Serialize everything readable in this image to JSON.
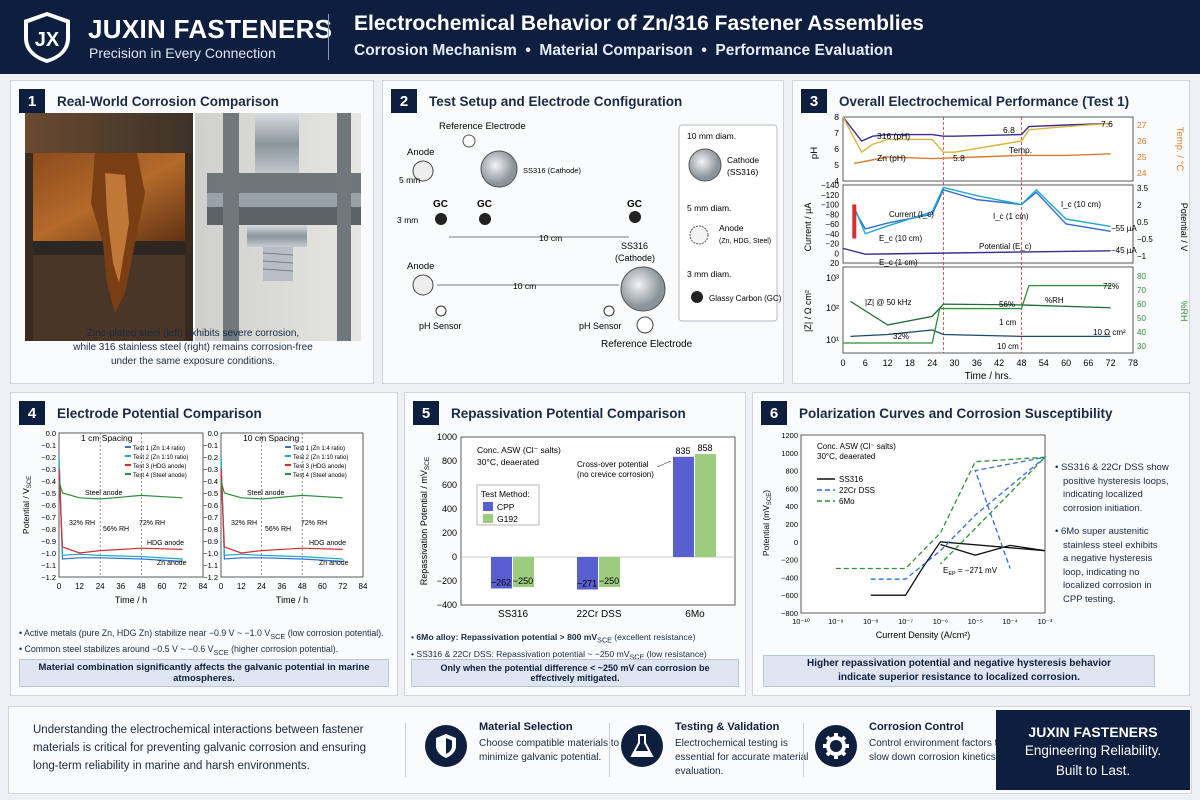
{
  "header": {
    "brand": "JUXIN FASTENERS",
    "tagline": "Precision in Every Connection",
    "title": "Electrochemical Behavior of Zn/316 Fastener Assemblies",
    "subtitle": "Corrosion Mechanism  •  Material Comparison  •  Performance Evaluation",
    "logo_text": "JX"
  },
  "p1": {
    "num": "1",
    "title": "Real-World Corrosion Comparison",
    "caption": [
      "Zinc-plated steel (left) exhibits severe corrosion,",
      "while 316 stainless steel (right) remains corrosion-free",
      "under the same exposure conditions."
    ]
  },
  "p2": {
    "num": "2",
    "title": "Test Setup and Electrode Configuration",
    "labels": {
      "ref1": "Reference Electrode",
      "anode1": "Anode",
      "mm5": "5 mm",
      "ss_cath": "SS316 (Cathode)",
      "gc": "GC",
      "mm3": "3 mm",
      "cm10": "10 cm",
      "ss316": "SS316",
      "cathode": "(Cathode)",
      "anode2": "Anode",
      "cm10b": "10 cm",
      "ph1": "pH Sensor",
      "ph2": "pH Sensor",
      "ref2": "Reference Electrode"
    },
    "legend": {
      "l1": "10 mm diam.",
      "l2a": "Cathode",
      "l2b": "(SS316)",
      "l3": "5 mm diam.",
      "l4a": "Anode",
      "l4b": "(Zn, HDG, Steel)",
      "l5": "3 mm diam.",
      "l6": "Glassy Carbon (GC)"
    }
  },
  "p3": {
    "num": "3",
    "title": "Overall Electrochemical Performance (Test 1)",
    "chart_data": {
      "type": "line",
      "xlabel": "Time / hrs.",
      "x_ticks": [
        0,
        6,
        12,
        18,
        24,
        30,
        36,
        42,
        48,
        54,
        60,
        66,
        72,
        78
      ],
      "top": {
        "ylabel": "pH",
        "yticks": [
          4,
          5,
          6,
          7,
          8
        ],
        "y2label": "Temp. / °C",
        "y2ticks": [
          24,
          25,
          26,
          27
        ],
        "labels": [
          "316 (pH)",
          "Zn (pH)",
          "Temp.",
          "5.8",
          "6.8",
          "7.6"
        ],
        "series": [
          {
            "name": "316 (pH)",
            "x": [
              0,
              5,
              8,
              12,
              24,
              27,
              30,
              48,
              50,
              60,
              72
            ],
            "y": [
              8,
              6.5,
              6.8,
              6.9,
              6.9,
              6.8,
              6.8,
              6.9,
              7.4,
              7.5,
              7.6
            ]
          },
          {
            "name": "Zn (pH)",
            "x": [
              0,
              5,
              8,
              12,
              24,
              27,
              30,
              48,
              50,
              60,
              72
            ],
            "y": [
              8,
              5.8,
              6.3,
              6.6,
              6.6,
              5.8,
              5.8,
              6.5,
              7.2,
              7.4,
              7.6
            ]
          },
          {
            "name": "Temp.",
            "x": [
              3,
              12,
              24,
              36,
              48,
              60,
              72
            ],
            "y": [
              24.6,
              25,
              24.9,
              25,
              25.1,
              25.1,
              25.2
            ]
          }
        ]
      },
      "mid": {
        "ylabel": "Current / µA",
        "yticks": [
          -140,
          -120,
          -100,
          -80,
          -60,
          -40,
          -20,
          0,
          20
        ],
        "y2label": "Potential / V",
        "y2ticks": [
          3.5,
          2.0,
          0.5,
          -0.5,
          -1.0
        ],
        "labels": [
          "Current (I_c)",
          "I_c (1 cm)",
          "I_c (10 cm)",
          "E_c (10 cm)",
          "Potential (E_c)",
          "E_c (1 cm)",
          "−55 µA",
          "−45 µA"
        ],
        "series": [
          {
            "name": "I_c (1 cm)",
            "x": [
              3,
              6,
              12,
              24,
              27,
              36,
              48,
              52,
              60,
              72
            ],
            "y": [
              -90,
              -50,
              -62,
              -80,
              -130,
              -110,
              -100,
              -125,
              -60,
              -45
            ]
          },
          {
            "name": "I_c (10 cm)",
            "x": [
              3,
              6,
              12,
              24,
              27,
              36,
              48,
              52,
              60,
              72
            ],
            "y": [
              -95,
              -40,
              -56,
              -85,
              -135,
              -118,
              -100,
              -130,
              -70,
              -55
            ]
          },
          {
            "name": "E_c",
            "x": [
              0,
              6,
              24,
              72
            ],
            "y": [
              -10,
              2,
              0,
              -5
            ]
          }
        ]
      },
      "bot": {
        "ylabel": "|Z| / Ω cm²",
        "yticks": [
          "10³",
          "10²",
          "10¹"
        ],
        "y2label": "%RH",
        "y2ticks": [
          80,
          70,
          60,
          50,
          40,
          30
        ],
        "labels": [
          "|Z| @ 50 kHz",
          "32%",
          "56%",
          "72%",
          "%RH",
          "1 cm",
          "10 cm",
          "10 Ω cm²"
        ],
        "series": [
          {
            "name": "|Z| 1 cm",
            "x": [
              2,
              12,
              24,
              27,
              48,
              72
            ],
            "y": [
              200,
              30,
              60,
              160,
              150,
              120
            ]
          },
          {
            "name": "|Z| 10 cm",
            "x": [
              2,
              12,
              24,
              27,
              48,
              72
            ],
            "y": [
              12,
              14,
              20,
              14,
              12,
              12
            ]
          },
          {
            "name": "%RH",
            "x": [
              0,
              24,
              26,
              48,
              50,
              72
            ],
            "y": [
              32,
              32,
              56,
              56,
              72,
              72
            ]
          }
        ]
      }
    }
  },
  "p4": {
    "num": "4",
    "title": "Electrode Potential Comparison",
    "chart_data": [
      {
        "type": "line",
        "title": "1 cm Spacing",
        "xlabel": "Time / h",
        "ylabel": "Potential / V",
        "ylabel_sub": "SCE",
        "xlim": [
          0,
          84
        ],
        "ylim": [
          -1.2,
          0
        ],
        "labels": [
          "Steel anode",
          "32% RH",
          "56% RH",
          "72% RH",
          "HDG anode",
          "Zn anode"
        ],
        "series": [
          {
            "name": "Test 1 (Zn 1:4 ratio)",
            "x": [
              0,
              2,
              12,
              24,
              48,
              72
            ],
            "y": [
              -0.2,
              -1.05,
              -1.04,
              -1.04,
              -1.05,
              -1.07
            ]
          },
          {
            "name": "Test 2 (Zn 1:10 ratio)",
            "x": [
              0,
              2,
              12,
              24,
              48,
              72
            ],
            "y": [
              -0.2,
              -1.02,
              -1.01,
              -1.02,
              -1.03,
              -1.05
            ]
          },
          {
            "name": "Test 3 (HDG anode)",
            "x": [
              0,
              2,
              12,
              24,
              48,
              72
            ],
            "y": [
              -0.3,
              -0.95,
              -1.0,
              -0.98,
              -0.96,
              -0.97
            ]
          },
          {
            "name": "Test 4 (Steel anode)",
            "x": [
              0,
              2,
              12,
              24,
              48,
              72
            ],
            "y": [
              -0.4,
              -0.5,
              -0.54,
              -0.55,
              -0.52,
              -0.54
            ]
          }
        ]
      },
      {
        "type": "line",
        "title": "10 cm Spacing",
        "xlabel": "Time / h",
        "xlim": [
          0,
          84
        ],
        "ylim": [
          -1.2,
          0
        ],
        "labels": [
          "Steel anode",
          "32% RH",
          "56% RH",
          "72% RH",
          "HDG anode",
          "Zn anode"
        ],
        "series": [
          {
            "name": "Test 1 (Zn 1:4 ratio)",
            "x": [
              0,
              2,
              12,
              24,
              48,
              72
            ],
            "y": [
              -0.2,
              -1.05,
              -1.04,
              -1.04,
              -1.05,
              -1.07
            ]
          },
          {
            "name": "Test 2 (Zn 1:10 ratio)",
            "x": [
              0,
              2,
              12,
              24,
              48,
              72
            ],
            "y": [
              -0.2,
              -1.02,
              -1.01,
              -1.02,
              -1.03,
              -1.05
            ]
          },
          {
            "name": "Test 3 (HDG anode)",
            "x": [
              0,
              2,
              12,
              24,
              48,
              72
            ],
            "y": [
              -0.3,
              -0.95,
              -1.0,
              -0.98,
              -0.96,
              -0.97
            ]
          },
          {
            "name": "Test 4 (Steel anode)",
            "x": [
              0,
              2,
              12,
              24,
              48,
              72
            ],
            "y": [
              -0.4,
              -0.5,
              -0.54,
              -0.55,
              -0.52,
              -0.54
            ]
          }
        ]
      }
    ],
    "x_ticks": [
      0,
      12,
      24,
      36,
      48,
      60,
      72,
      84
    ],
    "y_ticks": [
      "0.0",
      "−0.1",
      "−0.2",
      "−0.3",
      "−0.4",
      "−0.5",
      "−0.6",
      "−0.7",
      "−0.8",
      "−0.9",
      "−1.0",
      "−1.1",
      "−1.2"
    ],
    "bullets": [
      "Active metals (pure Zn, HDG Zn) stabilize near −0.9 V ~ −1.0 V",
      "(low corrosion potential).",
      "Common steel stabilizes around −0.5 V ~ −0.6 V",
      "(higher corrosion potential)."
    ],
    "sub": "SCE",
    "box": "Material combination significantly affects the galvanic potential in marine atmospheres."
  },
  "p5": {
    "num": "5",
    "title": "Repassivation Potential Comparison",
    "chart_data": {
      "type": "bar",
      "categories": [
        "SS316",
        "22Cr DSS",
        "6Mo"
      ],
      "series": [
        {
          "name": "CPP",
          "values": [
            -262,
            -271,
            835
          ]
        },
        {
          "name": "G192",
          "values": [
            -250,
            -250,
            858
          ]
        }
      ],
      "ylabel": "Repassivation Potential / mV",
      "ylabel_sub": "SCE",
      "ylim": [
        -400,
        1000
      ],
      "y_ticks": [
        "1000",
        "800",
        "600",
        "400",
        "200",
        "0",
        "−200",
        "−400"
      ],
      "value_labels": [
        "−262",
        "−250",
        "−271",
        "−250",
        "835",
        "858"
      ],
      "legend_title": "Test Method:",
      "annotation": [
        "Conc. ASW (Cl⁻ salts)",
        "30°C, deaerated"
      ],
      "callout": [
        "Cross-over potential",
        "(no crevice corrosion)"
      ]
    },
    "bullets": [
      "6Mo alloy: Repassivation potential > 800 mV",
      "(excellent resistance)",
      "SS316 & 22Cr DSS: Repassivation potential ~ −250 mV",
      "(low resistance)"
    ],
    "sub": "SCE",
    "box": "Only when the potential difference < ~250 mV can corrosion be effectively mitigated."
  },
  "p6": {
    "num": "6",
    "title": "Polarization Curves and Corrosion Susceptibility",
    "chart_data": {
      "type": "line",
      "xlabel": "Current Density (A/cm²)",
      "ylabel": "Potential (mV",
      "ylabel_sub": "SCE",
      "ylabel_end": ")",
      "xlim_exp": [
        -10,
        -3
      ],
      "x_ticks": [
        "10⁻¹⁰",
        "10⁻⁹",
        "10⁻⁸",
        "10⁻⁷",
        "10⁻⁶",
        "10⁻⁵",
        "10⁻⁴",
        "10⁻³"
      ],
      "ylim": [
        -800,
        1200
      ],
      "y_ticks": [
        "1200",
        "1000",
        "800",
        "600",
        "400",
        "200",
        "0",
        "−200",
        "−400",
        "−600",
        "−800"
      ],
      "annotation": [
        "Conc. ASW (Cl⁻ salts)",
        "30°C, deaerated"
      ],
      "ep_label": "E",
      "ep_sub": "EP",
      "ep_value": " = −271 mV",
      "series": [
        {
          "name": "SS316",
          "x": [
            1e-08,
            1e-07,
            3e-07,
            1e-06,
            0.001,
            0.0001,
            1e-05,
            1e-06
          ],
          "y": [
            -600,
            -600,
            -300,
            0,
            -100,
            -40,
            -150,
            -30
          ]
        },
        {
          "name": "22Cr DSS",
          "x": [
            1e-08,
            1e-07,
            1e-06,
            1e-05,
            0.001,
            1e-05,
            0.0001
          ],
          "y": [
            -420,
            -420,
            -100,
            300,
            950,
            800,
            -300
          ]
        },
        {
          "name": "6Mo",
          "x": [
            1e-09,
            1e-07,
            1e-06,
            1e-05,
            0.001,
            1e-06
          ],
          "y": [
            -300,
            -300,
            100,
            900,
            950,
            -250
          ]
        }
      ]
    },
    "notes": [
      "SS316 & 22Cr DSS show",
      "positive hysteresis loops,",
      "indicating localized",
      "corrosion initiation.",
      "6Mo super austenitic",
      "stainless steel exhibits",
      "a negative hysteresis",
      "loop, indicating no",
      "localized corrosion in",
      "CPP testing."
    ],
    "box": [
      "Higher repassivation potential and negative hysteresis behavior",
      "indicate superior resistance to localized corrosion."
    ]
  },
  "footer": {
    "text": "Understanding the electrochemical interactions between fastener materials is critical for preventing galvanic corrosion and ensuring long-term reliability in marine and harsh environments.",
    "items": [
      {
        "icon": "shield-icon",
        "title": "Material Selection",
        "desc": "Choose compatible materials to minimize galvanic potential."
      },
      {
        "icon": "flask-icon",
        "title": "Testing & Validation",
        "desc": "Electrochemical testing is essential for accurate material evaluation."
      },
      {
        "icon": "gear-icon",
        "title": "Corrosion Control",
        "desc": "Control environment factors to slow down corrosion kinetics."
      }
    ],
    "brand": "JUXIN FASTENERS",
    "brand_line1": "Engineering Reliability.",
    "brand_line2": "Built to Last."
  },
  "colors": {
    "navy": "#0e1e3f",
    "purple": "#3d2b8f",
    "gold": "#d9b43a",
    "orange": "#e07b2a",
    "blue": "#2f6fd6",
    "red": "#d62f2f",
    "green": "#2f8f3a",
    "cyan": "#20a8c8",
    "bar_cpp": "#5a5fd0",
    "bar_g192": "#9ccc7e"
  }
}
